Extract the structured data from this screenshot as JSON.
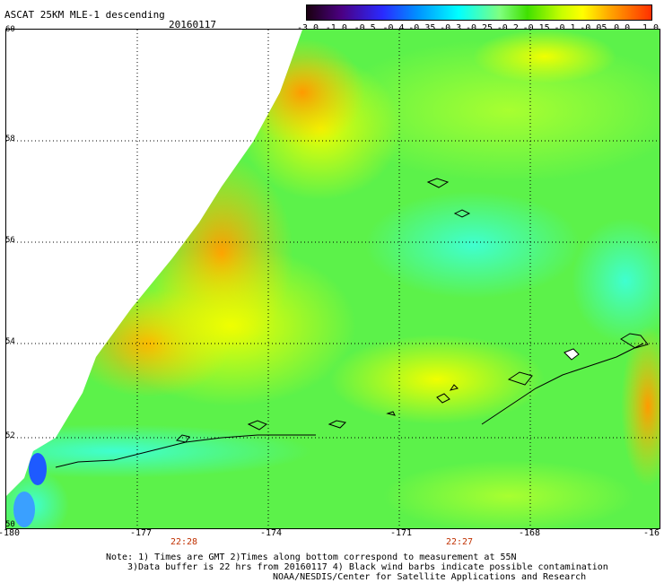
{
  "header": {
    "title": "ASCAT 25KM MLE-1 descending",
    "date": "20160117"
  },
  "colorbar": {
    "labels": [
      "-3.0",
      "-1.0",
      "-0.5",
      "-0.4",
      "-0.35",
      "-0.3",
      "-0.25",
      "-0.2",
      "-0.15",
      "-0.1",
      "-0.05",
      "0.0",
      "1.0"
    ]
  },
  "axes": {
    "lat_labels": [
      "60",
      "58",
      "56",
      "54",
      "52",
      "50"
    ],
    "lon_labels": [
      "-180",
      "-177",
      "-174",
      "-171",
      "-168",
      "-16"
    ]
  },
  "times": [
    "22:28",
    "22:27"
  ],
  "notes": [
    "Note: 1) Times are GMT 2)Times along bottom correspond to measurement at 55N",
    "3)Data buffer is 22 hrs from 20160117 4) Black wind barbs indicate possible contamination",
    "NOAA/NESDIS/Center for Satellite Applications and Research"
  ]
}
